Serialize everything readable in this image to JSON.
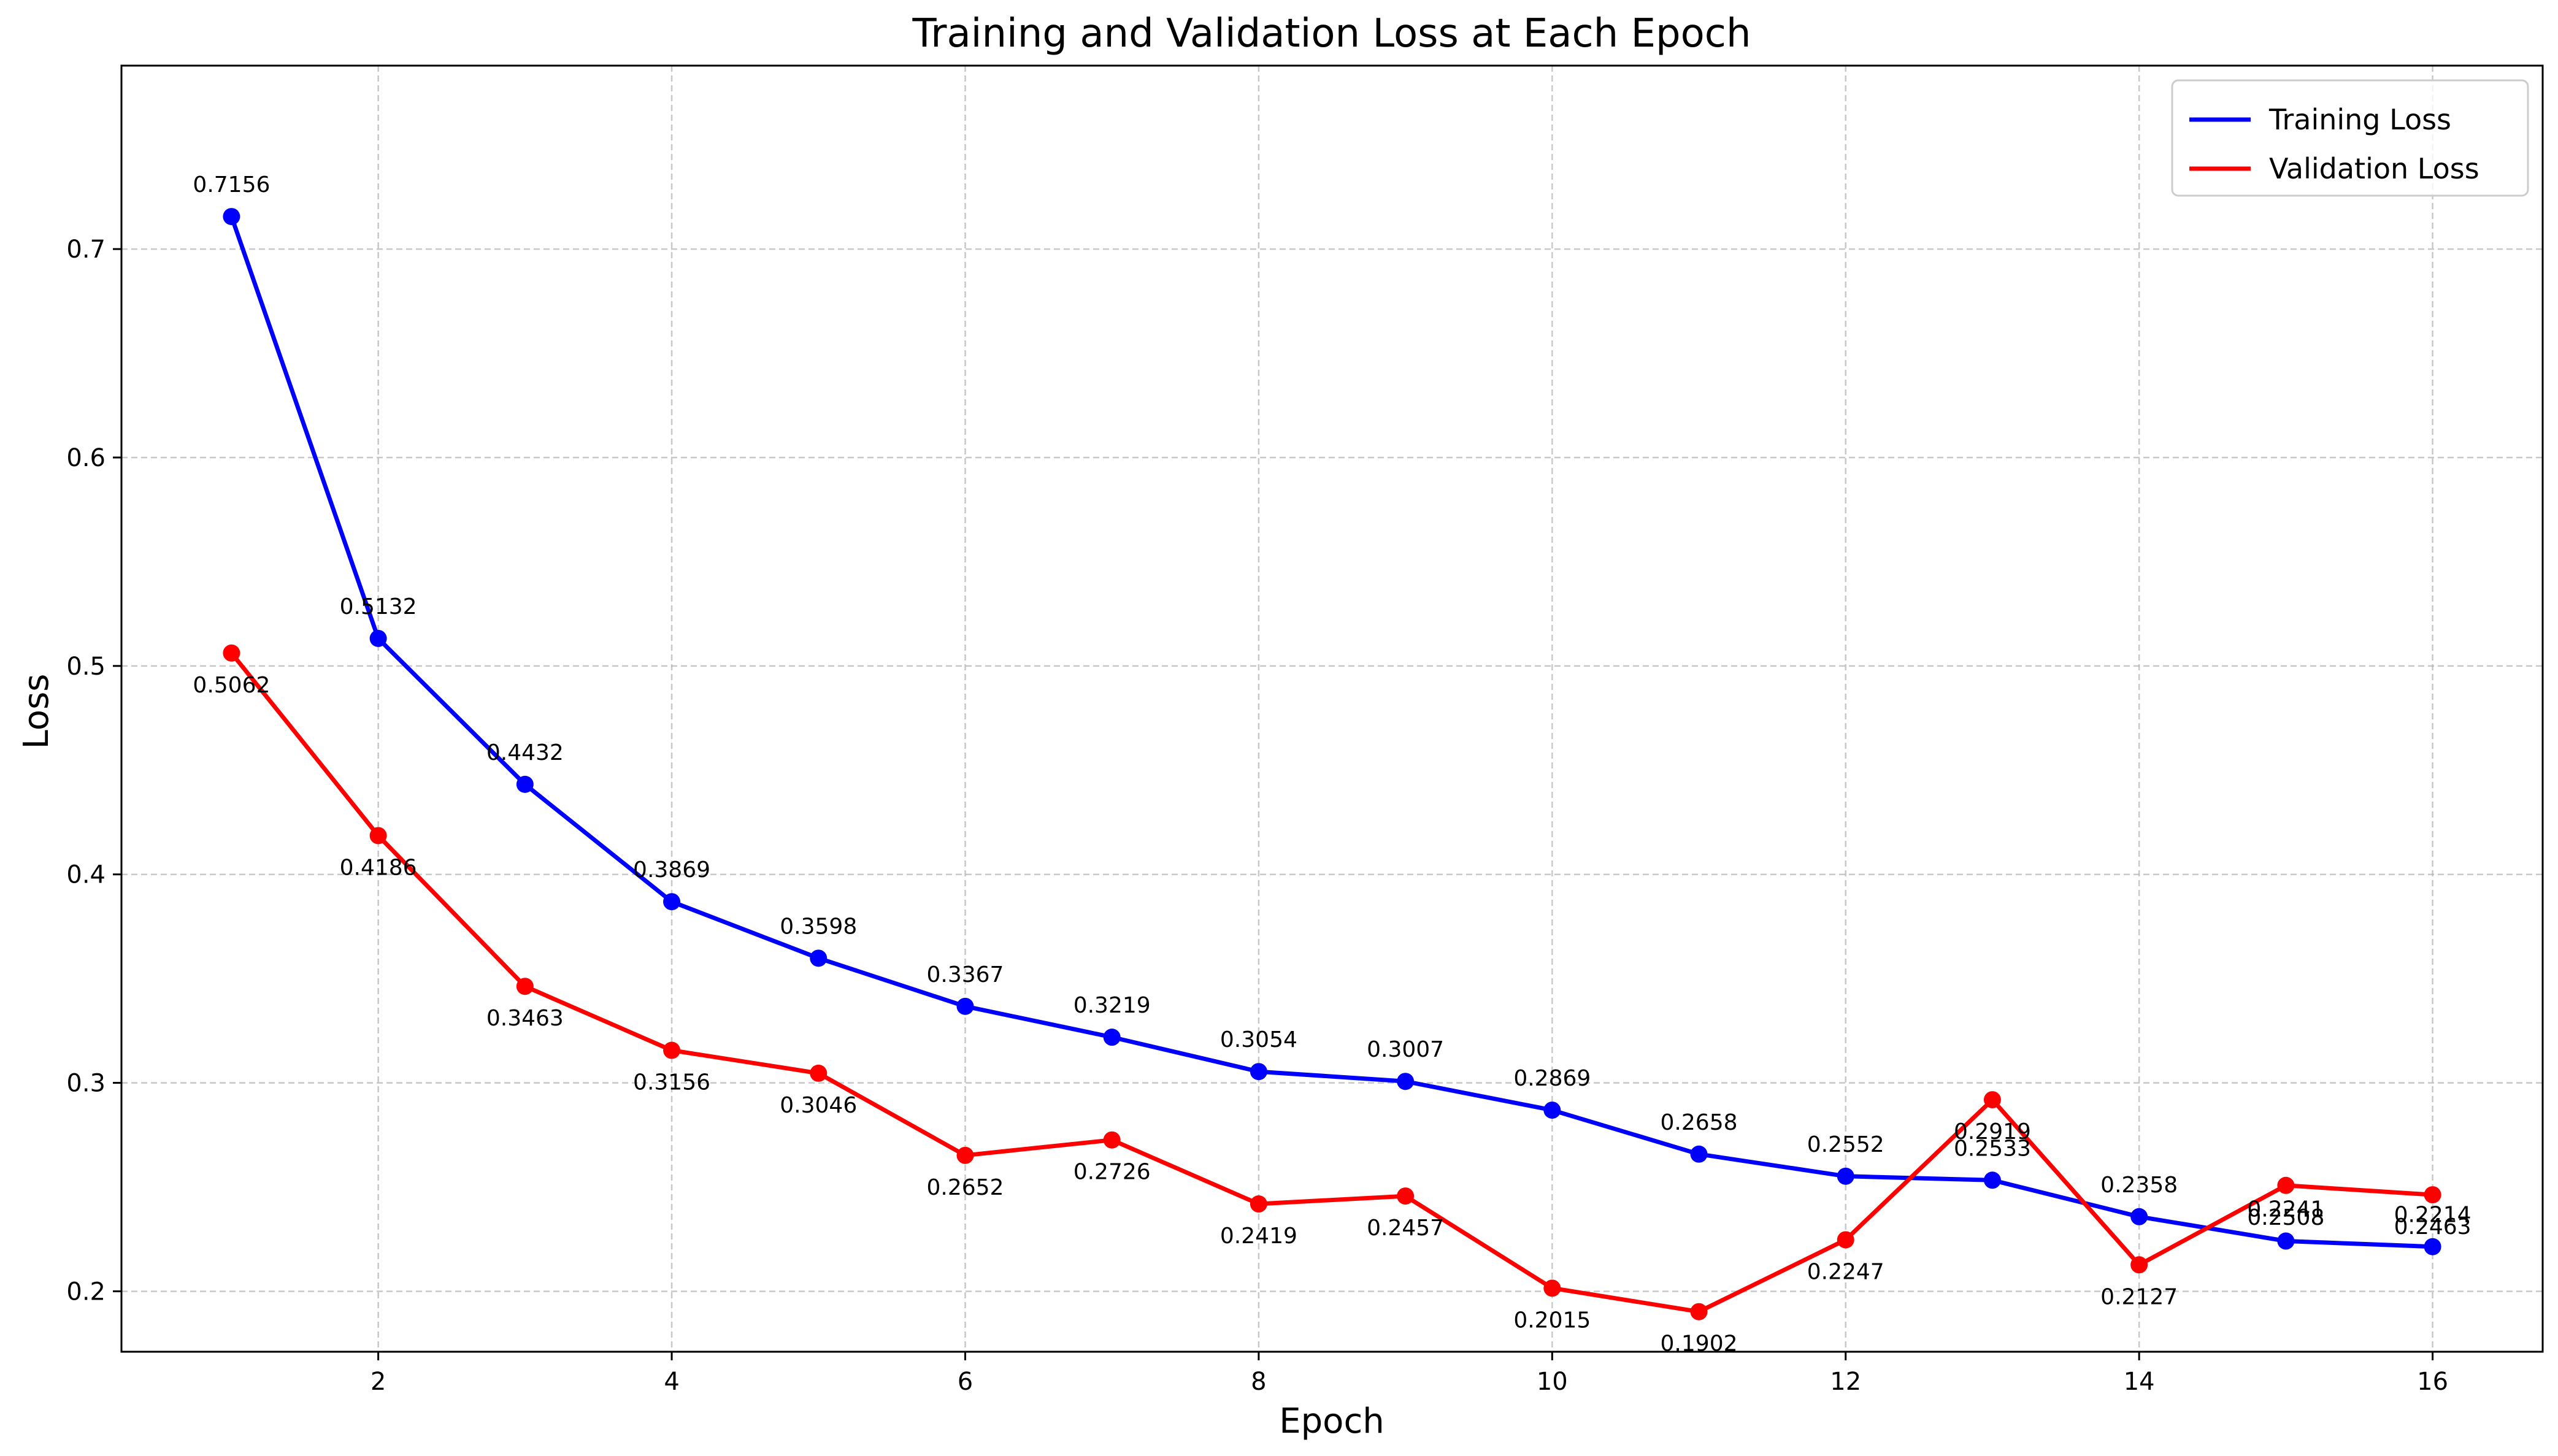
{
  "chart_data": {
    "type": "line",
    "title": "Training and Validation Loss at Each Epoch",
    "xlabel": "Epoch",
    "ylabel": "Loss",
    "xlim": [
      0.25,
      16.75
    ],
    "ylim": [
      0.171,
      0.788
    ],
    "xticks": [
      2,
      4,
      6,
      8,
      10,
      12,
      14,
      16
    ],
    "yticks": [
      0.2,
      0.3,
      0.4,
      0.5,
      0.6,
      0.7
    ],
    "xtick_labels": [
      "2",
      "4",
      "6",
      "8",
      "10",
      "12",
      "14",
      "16"
    ],
    "ytick_labels": [
      "0.2",
      "0.3",
      "0.4",
      "0.5",
      "0.6",
      "0.7"
    ],
    "grid": true,
    "legend_position": "top-right",
    "x": [
      1,
      2,
      3,
      4,
      5,
      6,
      7,
      8,
      9,
      10,
      11,
      12,
      13,
      14,
      15,
      16
    ],
    "series": [
      {
        "name": "Training Loss",
        "color": "#0000ff",
        "label_position": "above",
        "values": [
          0.7156,
          0.5132,
          0.4432,
          0.3869,
          0.3598,
          0.3367,
          0.3219,
          0.3054,
          0.3007,
          0.2869,
          0.2658,
          0.2552,
          0.2533,
          0.2358,
          0.2241,
          0.2214
        ],
        "labels": [
          "0.7156",
          "0.5132",
          "0.4432",
          "0.3869",
          "0.3598",
          "0.3367",
          "0.3219",
          "0.3054",
          "0.3007",
          "0.2869",
          "0.2658",
          "0.2552",
          "0.2533",
          "0.2358",
          "0.2241",
          "0.2214"
        ]
      },
      {
        "name": "Validation Loss",
        "color": "#ff0000",
        "label_position": "below",
        "values": [
          0.5062,
          0.4186,
          0.3463,
          0.3156,
          0.3046,
          0.2652,
          0.2726,
          0.2419,
          0.2457,
          0.2015,
          0.1902,
          0.2247,
          0.2919,
          0.2127,
          0.2508,
          0.2463
        ],
        "labels": [
          "0.5062",
          "0.4186",
          "0.3463",
          "0.3156",
          "0.3046",
          "0.2652",
          "0.2726",
          "0.2419",
          "0.2457",
          "0.2015",
          "0.1902",
          "0.2247",
          "0.2919",
          "0.2127",
          "0.2508",
          "0.2463"
        ]
      }
    ]
  }
}
